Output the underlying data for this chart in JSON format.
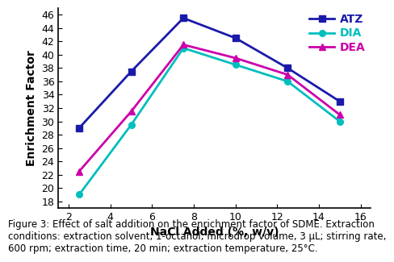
{
  "x": [
    2.5,
    5,
    7.5,
    10,
    12.5,
    15
  ],
  "ATZ": [
    29,
    37.5,
    45.5,
    42.5,
    38,
    33
  ],
  "DIA": [
    19,
    29.5,
    41,
    38.5,
    36,
    30
  ],
  "DEA": [
    22.5,
    31.5,
    41.5,
    39.5,
    37,
    31
  ],
  "ATZ_color": "#1a1aaa",
  "DIA_color": "#00bebe",
  "DEA_color": "#cc00aa",
  "xlabel": "NaCl Added (%, w/v)",
  "ylabel": "Enrichment Factor",
  "xlim": [
    1.5,
    16.5
  ],
  "ylim": [
    17,
    47
  ],
  "yticks": [
    18,
    20,
    22,
    24,
    26,
    28,
    30,
    32,
    34,
    36,
    38,
    40,
    42,
    44,
    46
  ],
  "xticks": [
    2,
    4,
    6,
    8,
    10,
    12,
    14,
    16
  ],
  "legend_labels": [
    "ATZ",
    "DIA",
    "DEA"
  ],
  "caption_bold": "Figure 3: ",
  "caption_rest": "Effect of salt addition on the enrichment factor of SDME. Extraction\nconditions: extraction solvent, 1-octanol; microdrop volume, 3 μL; stirring rate,\n600 rpm; extraction time, 20 min; extraction temperature, 25°C.",
  "axis_fontsize": 10,
  "tick_fontsize": 9,
  "legend_fontsize": 10,
  "caption_fontsize": 8.5
}
